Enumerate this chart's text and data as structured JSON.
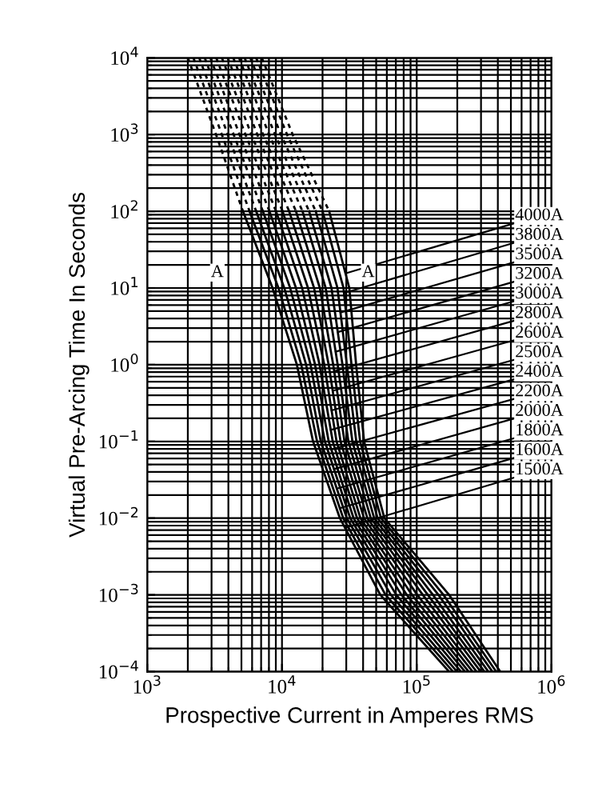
{
  "chart_data": {
    "type": "line",
    "xlabel": "Prospective Current in Amperes RMS",
    "ylabel": "Virtual Pre-Arcing Time In Seconds",
    "log": "xy",
    "grid": true,
    "legend": false,
    "marker": "none",
    "xlim": [
      1000,
      1000000
    ],
    "xticks": [
      {
        "value": 1000,
        "label": "10$^{3}$"
      },
      {
        "value": 10000,
        "label": "10$^{4}$"
      },
      {
        "value": 100000,
        "label": "10$^{5}$"
      },
      {
        "value": 1000000,
        "label": "10$^{6}$"
      }
    ],
    "ylim": [
      0.0001,
      10000
    ],
    "yticks": [
      {
        "value": 0.0001,
        "label": "10$^{−4}$"
      },
      {
        "value": 0.001,
        "label": "10$^{−3}$"
      },
      {
        "value": 0.01,
        "label": "10$^{−2}$"
      },
      {
        "value": 0.1,
        "label": "10$^{−1}$"
      },
      {
        "value": 1,
        "label": "10$^{0}$"
      },
      {
        "value": 10,
        "label": "10$^{1}$"
      },
      {
        "value": 100,
        "label": "10$^{2}$"
      },
      {
        "value": 1000,
        "label": "10$^{3}$"
      },
      {
        "value": 10000,
        "label": "10$^{4}$"
      }
    ],
    "annotations": [
      "A",
      "A"
    ],
    "series": [
      {
        "line_style": "dashed",
        "color": "#000000",
        "x": [
          2000,
          3240,
          5130
        ],
        "values": [
          10000,
          1000,
          100
        ]
      },
      {
        "line_style": "dashed",
        "color": "#000000",
        "x": [
          2200,
          3580,
          5740
        ],
        "values": [
          10000,
          1000,
          100
        ]
      },
      {
        "line_style": "dashed",
        "color": "#000000",
        "x": [
          2430,
          3960,
          6430
        ],
        "values": [
          10000,
          1000,
          100
        ]
      },
      {
        "line_style": "dashed",
        "color": "#000000",
        "x": [
          2670,
          4380,
          7210
        ],
        "values": [
          10000,
          1000,
          100
        ]
      },
      {
        "line_style": "dashed",
        "color": "#000000",
        "x": [
          2940,
          4840,
          8070
        ],
        "values": [
          10000,
          1000,
          100
        ]
      },
      {
        "line_style": "dashed",
        "color": "#000000",
        "x": [
          3250,
          5360,
          9030
        ],
        "values": [
          10000,
          1000,
          100
        ]
      },
      {
        "line_style": "dashed",
        "color": "#000000",
        "x": [
          3580,
          5930,
          10100
        ],
        "values": [
          10000,
          1000,
          100
        ]
      },
      {
        "line_style": "dashed",
        "color": "#000000",
        "x": [
          3950,
          6560,
          11300
        ],
        "values": [
          10000,
          1000,
          100
        ]
      },
      {
        "line_style": "dashed",
        "color": "#000000",
        "x": [
          4350,
          7240,
          12700
        ],
        "values": [
          10000,
          1000,
          100
        ]
      },
      {
        "line_style": "dashed",
        "color": "#000000",
        "x": [
          4800,
          8020,
          14200
        ],
        "values": [
          10000,
          1000,
          100
        ]
      },
      {
        "line_style": "dashed",
        "color": "#000000",
        "x": [
          5280,
          8870,
          15900
        ],
        "values": [
          10000,
          1000,
          100
        ]
      },
      {
        "line_style": "dashed",
        "color": "#000000",
        "x": [
          5820,
          9820,
          17800
        ],
        "values": [
          10000,
          1000,
          100
        ]
      },
      {
        "line_style": "dashed",
        "color": "#000000",
        "x": [
          6430,
          10900,
          20000
        ],
        "values": [
          10000,
          1000,
          100
        ]
      },
      {
        "line_style": "dashed",
        "color": "#000000",
        "x": [
          7080,
          12000,
          22400
        ],
        "values": [
          10000,
          1000,
          100
        ]
      },
      {
        "name": "4000A",
        "line_style": "solid",
        "color": "#000000",
        "x": [
          22400,
          31600,
          35500,
          40700,
          57500,
          174000,
          417000
        ],
        "values": [
          100,
          10,
          1,
          0.1,
          0.01,
          0.001,
          0.0001
        ]
      },
      {
        "name": "3800A",
        "line_style": "solid",
        "color": "#000000",
        "x": [
          20000,
          28600,
          32800,
          38000,
          54300,
          158000,
          389000
        ],
        "values": [
          100,
          10,
          1,
          0.1,
          0.01,
          0.001,
          0.0001
        ]
      },
      {
        "name": "3500A",
        "line_style": "solid",
        "color": "#000000",
        "x": [
          17800,
          25800,
          30300,
          35600,
          51200,
          145000,
          364000
        ],
        "values": [
          100,
          10,
          1,
          0.1,
          0.01,
          0.001,
          0.0001
        ]
      },
      {
        "name": "3200A",
        "line_style": "solid",
        "color": "#000000",
        "x": [
          15900,
          23300,
          28100,
          33300,
          48300,
          132000,
          340000
        ],
        "values": [
          100,
          10,
          1,
          0.1,
          0.01,
          0.001,
          0.0001
        ]
      },
      {
        "name": "3000A",
        "line_style": "solid",
        "color": "#000000",
        "x": [
          14200,
          21100,
          25900,
          31100,
          45600,
          121000,
          318000
        ],
        "values": [
          100,
          10,
          1,
          0.1,
          0.01,
          0.001,
          0.0001
        ]
      },
      {
        "name": "2800A",
        "line_style": "solid",
        "color": "#000000",
        "x": [
          12700,
          19100,
          24000,
          29100,
          43000,
          111000,
          298000
        ],
        "values": [
          100,
          10,
          1,
          0.1,
          0.01,
          0.001,
          0.0001
        ]
      },
      {
        "name": "2600A",
        "line_style": "solid",
        "color": "#000000",
        "x": [
          11300,
          17300,
          22200,
          27200,
          40600,
          101000,
          278000
        ],
        "values": [
          100,
          10,
          1,
          0.1,
          0.01,
          0.001,
          0.0001
        ]
      },
      {
        "name": "2500A",
        "line_style": "solid",
        "color": "#000000",
        "x": [
          10100,
          15600,
          20600,
          25400,
          38200,
          92300,
          260000
        ],
        "values": [
          100,
          10,
          1,
          0.1,
          0.01,
          0.001,
          0.0001
        ]
      },
      {
        "name": "2400A",
        "line_style": "solid",
        "color": "#000000",
        "x": [
          9030,
          14100,
          19000,
          23800,
          36100,
          84300,
          243000
        ],
        "values": [
          100,
          10,
          1,
          0.1,
          0.01,
          0.001,
          0.0001
        ]
      },
      {
        "name": "2200A",
        "line_style": "solid",
        "color": "#000000",
        "x": [
          8070,
          12700,
          17600,
          22200,
          34000,
          77100,
          228000
        ],
        "values": [
          100,
          10,
          1,
          0.1,
          0.01,
          0.001,
          0.0001
        ]
      },
      {
        "name": "2000A",
        "line_style": "solid",
        "color": "#000000",
        "x": [
          7210,
          11500,
          16300,
          20800,
          32100,
          70500,
          213000
        ],
        "values": [
          100,
          10,
          1,
          0.1,
          0.01,
          0.001,
          0.0001
        ]
      },
      {
        "name": "1800A",
        "line_style": "solid",
        "color": "#000000",
        "x": [
          6430,
          10400,
          15100,
          19400,
          30300,
          64300,
          199000
        ],
        "values": [
          100,
          10,
          1,
          0.1,
          0.01,
          0.001,
          0.0001
        ]
      },
      {
        "name": "1600A",
        "line_style": "solid",
        "color": "#000000",
        "x": [
          5740,
          9420,
          13900,
          18200,
          28500,
          58700,
          186000
        ],
        "values": [
          100,
          10,
          1,
          0.1,
          0.01,
          0.001,
          0.0001
        ]
      },
      {
        "name": "1500A",
        "line_style": "solid",
        "color": "#000000",
        "x": [
          5130,
          8510,
          12900,
          17000,
          26900,
          53700,
          174000
        ],
        "values": [
          100,
          10,
          1,
          0.1,
          0.01,
          0.001,
          0.0001
        ]
      }
    ]
  }
}
